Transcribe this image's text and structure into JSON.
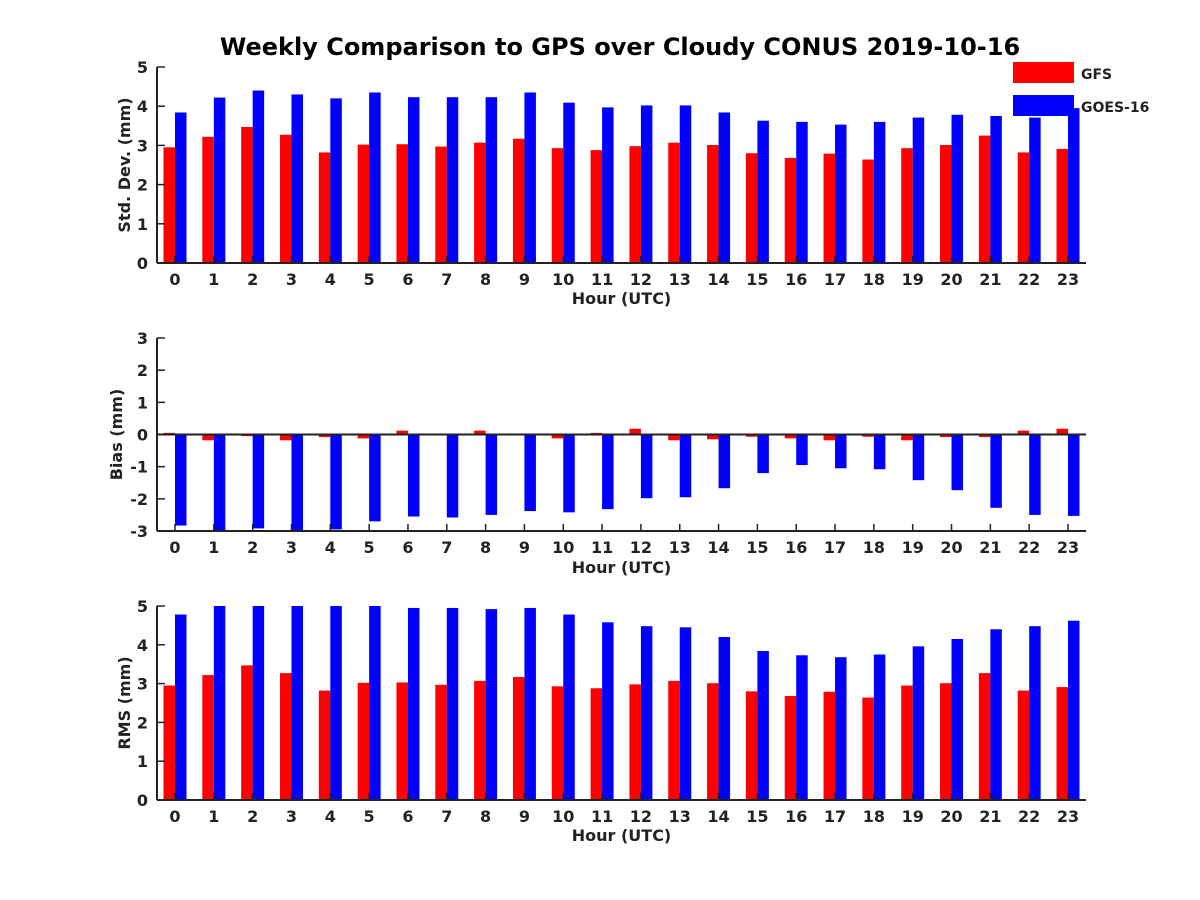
{
  "title": "Weekly Comparison to GPS over Cloudy CONUS 2019-10-16",
  "colors": {
    "GFS": "#ff0000",
    "GOES-16": "#0000ff"
  },
  "legend": [
    "GFS",
    "GOES-16"
  ],
  "chart_data": [
    {
      "type": "bar",
      "xlabel": "Hour (UTC)",
      "ylabel": "Std. Dev. (mm)",
      "ylim": [
        0,
        5
      ],
      "yticks": [
        0,
        1,
        2,
        3,
        4,
        5
      ],
      "categories": [
        "0",
        "1",
        "2",
        "3",
        "4",
        "5",
        "6",
        "7",
        "8",
        "9",
        "10",
        "11",
        "12",
        "13",
        "14",
        "15",
        "16",
        "17",
        "18",
        "19",
        "20",
        "21",
        "22",
        "23"
      ],
      "legend_placement": "top-right outside",
      "series": [
        {
          "name": "GFS",
          "values": [
            2.95,
            3.22,
            3.47,
            3.27,
            2.82,
            3.02,
            3.03,
            2.97,
            3.07,
            3.17,
            2.93,
            2.88,
            2.98,
            3.07,
            3.01,
            2.8,
            2.68,
            2.79,
            2.64,
            2.93,
            3.01,
            3.25,
            2.82,
            2.91
          ]
        },
        {
          "name": "GOES-16",
          "values": [
            3.84,
            4.22,
            4.4,
            4.3,
            4.2,
            4.35,
            4.23,
            4.23,
            4.23,
            4.35,
            4.09,
            3.97,
            4.02,
            4.02,
            3.84,
            3.63,
            3.6,
            3.53,
            3.6,
            3.71,
            3.78,
            3.75,
            3.71,
            3.95
          ]
        }
      ]
    },
    {
      "type": "bar",
      "xlabel": "Hour (UTC)",
      "ylabel": "Bias (mm)",
      "ylim": [
        -3,
        3
      ],
      "yticks": [
        -3,
        -2,
        -1,
        0,
        1,
        2,
        3
      ],
      "categories": [
        "0",
        "1",
        "2",
        "3",
        "4",
        "5",
        "6",
        "7",
        "8",
        "9",
        "10",
        "11",
        "12",
        "13",
        "14",
        "15",
        "16",
        "17",
        "18",
        "19",
        "20",
        "21",
        "22",
        "23"
      ],
      "zero_line": true,
      "series": [
        {
          "name": "GFS",
          "values": [
            0.05,
            -0.18,
            -0.05,
            -0.18,
            -0.08,
            -0.12,
            0.12,
            -0.03,
            0.12,
            -0.03,
            -0.12,
            0.05,
            0.18,
            -0.18,
            -0.15,
            -0.07,
            -0.12,
            -0.18,
            -0.07,
            -0.18,
            -0.08,
            -0.08,
            0.12,
            0.18
          ]
        },
        {
          "name": "GOES-16",
          "values": [
            -2.83,
            -3.05,
            -2.92,
            -3.05,
            -2.95,
            -2.7,
            -2.55,
            -2.58,
            -2.5,
            -2.38,
            -2.42,
            -2.32,
            -1.98,
            -1.95,
            -1.67,
            -1.2,
            -0.95,
            -1.05,
            -1.08,
            -1.42,
            -1.73,
            -2.28,
            -2.5,
            -2.53
          ]
        }
      ]
    },
    {
      "type": "bar",
      "xlabel": "Hour (UTC)",
      "ylabel": "RMS (mm)",
      "ylim": [
        0,
        5
      ],
      "yticks": [
        0,
        1,
        2,
        3,
        4,
        5
      ],
      "categories": [
        "0",
        "1",
        "2",
        "3",
        "4",
        "5",
        "6",
        "7",
        "8",
        "9",
        "10",
        "11",
        "12",
        "13",
        "14",
        "15",
        "16",
        "17",
        "18",
        "19",
        "20",
        "21",
        "22",
        "23"
      ],
      "series": [
        {
          "name": "GFS",
          "values": [
            2.95,
            3.22,
            3.47,
            3.27,
            2.82,
            3.02,
            3.03,
            2.97,
            3.07,
            3.17,
            2.93,
            2.88,
            2.98,
            3.07,
            3.01,
            2.8,
            2.68,
            2.79,
            2.64,
            2.95,
            3.01,
            3.27,
            2.82,
            2.91
          ]
        },
        {
          "name": "GOES-16",
          "values": [
            4.78,
            5.1,
            5.1,
            5.1,
            5.1,
            5.1,
            4.95,
            4.95,
            4.92,
            4.95,
            4.78,
            4.58,
            4.48,
            4.45,
            4.2,
            3.84,
            3.73,
            3.68,
            3.75,
            3.96,
            4.15,
            4.4,
            4.48,
            4.62
          ]
        }
      ]
    }
  ]
}
